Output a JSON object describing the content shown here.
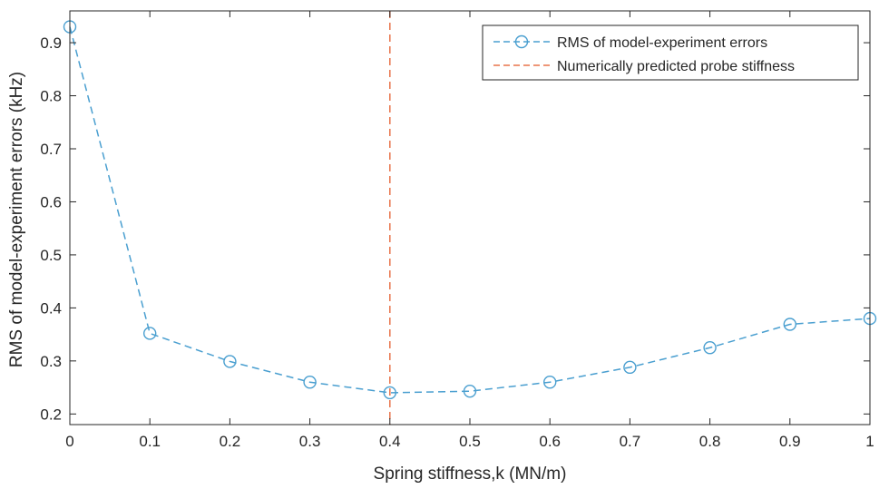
{
  "chart_data": {
    "type": "line",
    "xlabel": "Spring stiffness,k (MN/m)",
    "ylabel": "RMS of model-experiment errors (kHz)",
    "xlim": [
      0,
      1
    ],
    "ylim": [
      0.18,
      0.96
    ],
    "x_ticks": [
      0,
      0.1,
      0.2,
      0.3,
      0.4,
      0.5,
      0.6,
      0.7,
      0.8,
      0.9,
      1
    ],
    "x_tick_labels": [
      "0",
      "0.1",
      "0.2",
      "0.3",
      "0.4",
      "0.5",
      "0.6",
      "0.7",
      "0.8",
      "0.9",
      "1"
    ],
    "y_ticks": [
      0.2,
      0.3,
      0.4,
      0.5,
      0.6,
      0.7,
      0.8,
      0.9
    ],
    "y_tick_labels": [
      "0.2",
      "0.3",
      "0.4",
      "0.5",
      "0.6",
      "0.7",
      "0.8",
      "0.9"
    ],
    "grid": false,
    "legend_position": "top-right",
    "series": [
      {
        "name": "RMS of model-experiment errors",
        "style": "dashed-line-circle-markers",
        "color": "#4a9fd0",
        "x": [
          0,
          0.1,
          0.2,
          0.3,
          0.4,
          0.5,
          0.6,
          0.7,
          0.8,
          0.9,
          1
        ],
        "y": [
          0.93,
          0.352,
          0.299,
          0.26,
          0.24,
          0.243,
          0.26,
          0.288,
          0.325,
          0.369,
          0.38
        ]
      }
    ],
    "reference_lines": [
      {
        "name": "Numerically predicted probe stiffness",
        "orientation": "vertical",
        "x": 0.4,
        "style": "dashed",
        "color": "#e8734a"
      }
    ]
  }
}
